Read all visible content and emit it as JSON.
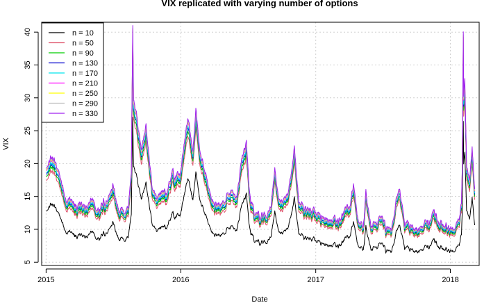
{
  "chart_data": {
    "type": "line",
    "title": "VIX replicated with varying number of options",
    "xlabel": "Date",
    "ylabel": "VIX",
    "x_range": [
      "2014-12-20",
      "2018-03-20"
    ],
    "ylim": [
      4.5,
      41.5
    ],
    "x_ticks": [
      "2015-01-01",
      "2016-01-01",
      "2017-01-01",
      "2018-01-01"
    ],
    "x_tick_labels": [
      "2015",
      "2016",
      "2017",
      "2018"
    ],
    "y_ticks": [
      5,
      10,
      15,
      20,
      25,
      30,
      35,
      40
    ],
    "y_tick_labels": [
      "5",
      "10",
      "15",
      "20",
      "25",
      "30",
      "35",
      "40"
    ],
    "grid": true,
    "legend_position": "top-left",
    "series": [
      {
        "name": "n = 10",
        "color": "#000000",
        "scale": 0.66,
        "offset": 0.0
      },
      {
        "name": "n = 50",
        "color": "#DF536B",
        "scale": 0.9,
        "offset": 0.0
      },
      {
        "name": "n = 90",
        "color": "#00CD00",
        "scale": 0.93,
        "offset": 0.0
      },
      {
        "name": "n = 130",
        "color": "#0000CD",
        "scale": 0.95,
        "offset": 0.0
      },
      {
        "name": "n = 170",
        "color": "#00E5EE",
        "scale": 0.96,
        "offset": 0.0
      },
      {
        "name": "n = 210",
        "color": "#FF00FF",
        "scale": 0.98,
        "offset": 0.0
      },
      {
        "name": "n = 250",
        "color": "#FFFF00",
        "scale": 0.985,
        "offset": 0.0
      },
      {
        "name": "n = 290",
        "color": "#BEBEBE",
        "scale": 0.99,
        "offset": 0.0
      },
      {
        "name": "n = 330",
        "color": "#A020F0",
        "scale": 1.0,
        "offset": 0.0
      }
    ],
    "reference_series": {
      "x": [
        "2015-01-02",
        "2015-01-14",
        "2015-01-28",
        "2015-02-10",
        "2015-02-25",
        "2015-03-10",
        "2015-03-25",
        "2015-04-08",
        "2015-04-22",
        "2015-05-06",
        "2015-05-20",
        "2015-06-03",
        "2015-06-17",
        "2015-07-01",
        "2015-07-15",
        "2015-07-29",
        "2015-08-12",
        "2015-08-20",
        "2015-08-24",
        "2015-08-26",
        "2015-09-02",
        "2015-09-16",
        "2015-09-29",
        "2015-10-14",
        "2015-10-28",
        "2015-11-11",
        "2015-11-25",
        "2015-12-09",
        "2015-12-16",
        "2015-12-30",
        "2016-01-13",
        "2016-01-20",
        "2016-02-03",
        "2016-02-11",
        "2016-02-24",
        "2016-03-09",
        "2016-03-23",
        "2016-04-06",
        "2016-04-20",
        "2016-05-04",
        "2016-05-18",
        "2016-06-01",
        "2016-06-15",
        "2016-06-27",
        "2016-07-06",
        "2016-07-20",
        "2016-08-03",
        "2016-08-17",
        "2016-08-31",
        "2016-09-12",
        "2016-09-21",
        "2016-10-05",
        "2016-10-19",
        "2016-11-02",
        "2016-11-04",
        "2016-11-16",
        "2016-11-30",
        "2016-12-14",
        "2016-12-28",
        "2017-01-11",
        "2017-01-25",
        "2017-02-08",
        "2017-02-22",
        "2017-03-08",
        "2017-03-22",
        "2017-04-05",
        "2017-04-13",
        "2017-04-26",
        "2017-05-10",
        "2017-05-17",
        "2017-05-31",
        "2017-06-14",
        "2017-06-28",
        "2017-07-12",
        "2017-07-26",
        "2017-08-10",
        "2017-08-17",
        "2017-08-30",
        "2017-09-13",
        "2017-09-27",
        "2017-10-11",
        "2017-10-25",
        "2017-11-08",
        "2017-11-15",
        "2017-11-29",
        "2017-12-13",
        "2017-12-27",
        "2018-01-10",
        "2018-01-24",
        "2018-01-31",
        "2018-02-02",
        "2018-02-05",
        "2018-02-06",
        "2018-02-09",
        "2018-02-14",
        "2018-02-22",
        "2018-03-01",
        "2018-03-08"
      ],
      "values": [
        19.2,
        21.0,
        20.0,
        17.5,
        14.0,
        15.0,
        13.2,
        14.0,
        13.0,
        15.0,
        12.5,
        14.0,
        14.5,
        17.0,
        13.0,
        13.0,
        13.0,
        19.0,
        41.0,
        30.0,
        28.0,
        22.0,
        26.0,
        17.0,
        14.5,
        16.0,
        15.5,
        19.0,
        18.0,
        18.5,
        24.0,
        27.0,
        22.0,
        28.0,
        21.0,
        18.5,
        14.5,
        14.0,
        13.5,
        15.0,
        16.0,
        14.5,
        21.0,
        23.5,
        15.0,
        12.5,
        12.0,
        12.0,
        13.0,
        19.0,
        15.0,
        14.0,
        16.0,
        21.0,
        22.5,
        14.0,
        13.5,
        13.0,
        13.0,
        12.0,
        11.5,
        11.0,
        11.5,
        11.5,
        13.0,
        13.5,
        17.0,
        11.0,
        10.5,
        15.5,
        10.5,
        11.0,
        12.0,
        10.0,
        10.0,
        15.5,
        16.0,
        11.0,
        10.5,
        10.0,
        10.0,
        11.5,
        11.0,
        13.0,
        11.0,
        10.5,
        10.5,
        10.0,
        11.5,
        14.0,
        19.0,
        40.0,
        30.0,
        33.0,
        19.5,
        18.0,
        22.5,
        16.0
      ]
    }
  }
}
